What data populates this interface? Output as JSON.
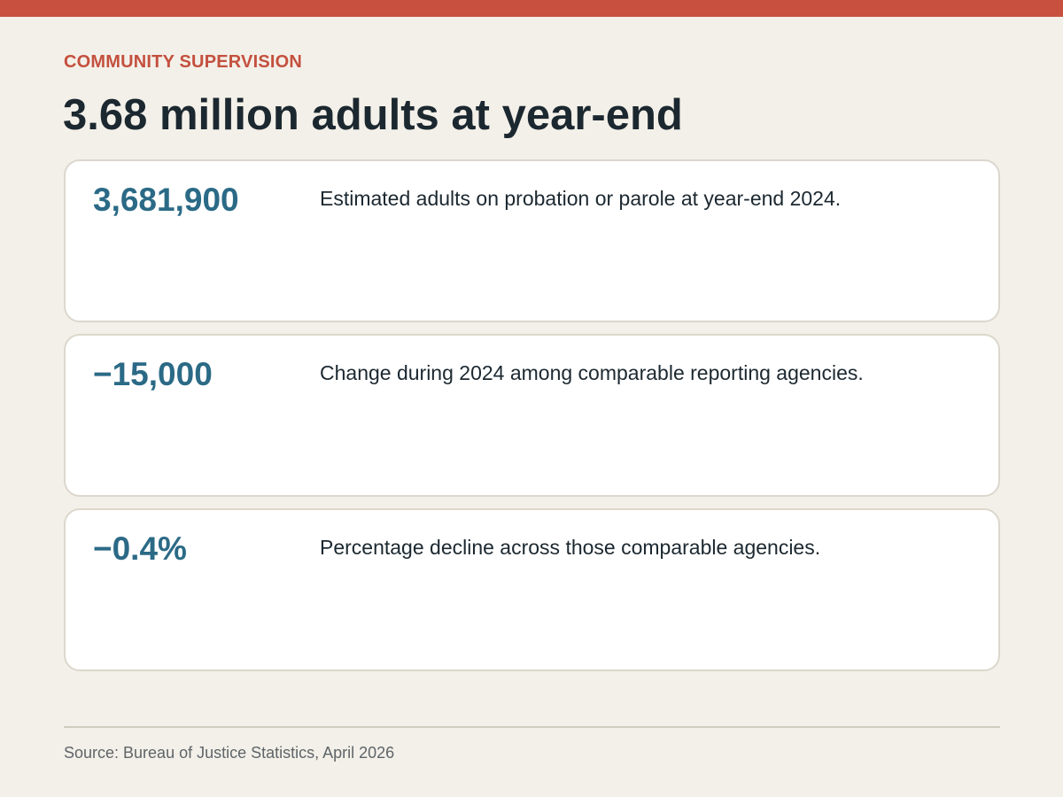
{
  "header": {
    "eyebrow": "COMMUNITY SUPERVISION",
    "headline": "3.68 million adults at year-end"
  },
  "stats": [
    {
      "value": "3,681,900",
      "description": "Estimated adults on probation or parole at year-end 2024."
    },
    {
      "value": "−15,000",
      "description": "Change during 2024 among comparable reporting agencies."
    },
    {
      "value": "−0.4%",
      "description": "Percentage decline across those comparable agencies."
    }
  ],
  "footer": {
    "source": "Source: Bureau of Justice Statistics, April 2026"
  },
  "colors": {
    "accent_bar": "#c8503f",
    "eyebrow": "#c4503e",
    "stat_value": "#2b6a86",
    "background": "#f3f0e9",
    "text": "#1c2830"
  }
}
